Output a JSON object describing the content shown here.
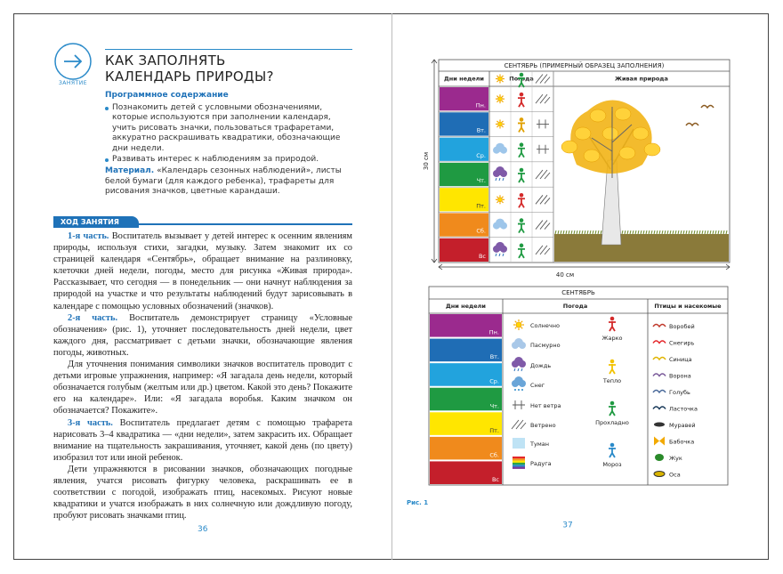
{
  "left_page": {
    "lesson_label": "ЗАНЯТИЕ",
    "title_lines": [
      "КАК ЗАПОЛНЯТЬ",
      "КАЛЕНДАРЬ ПРИРОДЫ?"
    ],
    "program_heading": "Программное содержание",
    "program_items": [
      "Познакомить детей с условными обозначениями, которые используются при заполнении календаря, учить рисовать значки, пользоваться трафаретами, аккуратно раскрашивать квадратики, обозначающие дни недели.",
      "Развивать интерес к наблюдениям за природой."
    ],
    "material_label": "Материал.",
    "material_text": "«Календарь сезонных наблюдений», листы белой бумаги (для каждого ребенка), трафареты для рисования значков, цветные карандаши.",
    "section_title": "ХОД ЗАНЯТИЯ",
    "paragraphs": [
      {
        "lead": "1-я часть.",
        "text": "Воспитатель вызывает у детей интерес к осенним явлениям природы, используя стихи, загадки, музыку. Затем знакомит их со страницей календаря «Сентябрь», обращает внимание на разлиновку, клеточки дней недели, погоды, место для рисунка «Живая природа». Рассказывает, что сегодня — в понедельник — они начнут наблюдения за природой на участке и что результаты наблюдений будут зарисовывать в календаре с помощью условных обозначений (значков)."
      },
      {
        "lead": "2-я часть.",
        "text": "Воспитатель демонстрирует страницу «Условные обозначения» (рис. 1), уточняет последовательность дней недели, цвет каждого дня, рассматривает с детьми значки, обозначающие явления погоды, животных."
      },
      {
        "text": "Для уточнения понимания символики значков воспитатель проводит с детьми игровые упражнения, например: «Я загадала день недели, который обозначается голубым (желтым или др.) цветом. Какой это день? Покажите его на календаре». Или: «Я загадала воробья. Каким значком он обозначается? Покажите»."
      },
      {
        "lead": "3-я часть.",
        "text": "Воспитатель предлагает детям с помощью трафарета нарисовать 3–4 квадратика — «дни недели», затем закрасить их. Обращает внимание на тщательность закрашивания, уточняет, какой день (по цвету) изобразил тот или иной ребенок."
      },
      {
        "text": "Дети упражняются в рисовании значков, обозначающих погодные явления, учатся рисовать фигурку человека, раскрашивать ее в соответствии с погодой, изображать птиц, насекомых. Рисуют новые квадратики и учатся изображать в них солнечную или дождливую погоду, пробуют рисовать значками птиц."
      }
    ],
    "page_number": "36"
  },
  "right_page": {
    "sample": {
      "caption": "СЕНТЯБРЬ (ПРИМЕРНЫЙ ОБРАЗЕЦ ЗАПОЛНЕНИЯ)",
      "headers": [
        "Дни недели",
        "Погода",
        "Живая природа"
      ],
      "height_label": "30 см",
      "width_label": "40 см"
    },
    "legend": {
      "caption": "СЕНТЯБРЬ",
      "headers": [
        "Дни недели",
        "Погода",
        "Птицы и насекомые"
      ],
      "weather": [
        "Солнечно",
        "Пасмурно",
        "Дождь",
        "Снег",
        "Нет ветра",
        "Ветрено",
        "Туман",
        "Радуга"
      ],
      "temperature": [
        "Жарко",
        "Тепло",
        "Прохладно",
        "Мороз"
      ],
      "animals": [
        "Воробей",
        "Снегирь",
        "Синица",
        "Ворона",
        "Голубь",
        "Ласточка",
        "Муравей",
        "Бабочка",
        "Жук",
        "Оса"
      ]
    },
    "days": [
      {
        "label": "Пн.",
        "color": "#9b2a8e"
      },
      {
        "label": "Вт.",
        "color": "#1f6db5"
      },
      {
        "label": "Ср.",
        "color": "#22a3dd"
      },
      {
        "label": "Чт.",
        "color": "#1f9a42"
      },
      {
        "label": "Пт.",
        "color": "#ffe600"
      },
      {
        "label": "Сб.",
        "color": "#f08a1c"
      },
      {
        "label": "Вс",
        "color": "#c41f2b"
      }
    ],
    "figure_label": "Рис. 1",
    "page_number": "37"
  }
}
